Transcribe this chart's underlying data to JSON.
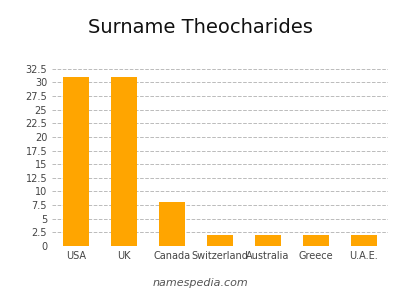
{
  "title": "Surname Theocharides",
  "categories": [
    "USA",
    "UK",
    "Canada",
    "Switzerland",
    "Australia",
    "Greece",
    "U.A.E."
  ],
  "values": [
    31,
    31,
    8,
    2,
    2,
    2,
    2
  ],
  "bar_color": "#FFA500",
  "ylim": [
    0,
    33
  ],
  "yticks": [
    0,
    2.5,
    5,
    7.5,
    10,
    12.5,
    15,
    17.5,
    20,
    22.5,
    25,
    27.5,
    30,
    32.5
  ],
  "grid_color": "#bbbbbb",
  "grid_style": "--",
  "background_color": "#ffffff",
  "title_fontsize": 14,
  "tick_fontsize": 7,
  "footer_text": "namespedia.com",
  "footer_fontsize": 8
}
